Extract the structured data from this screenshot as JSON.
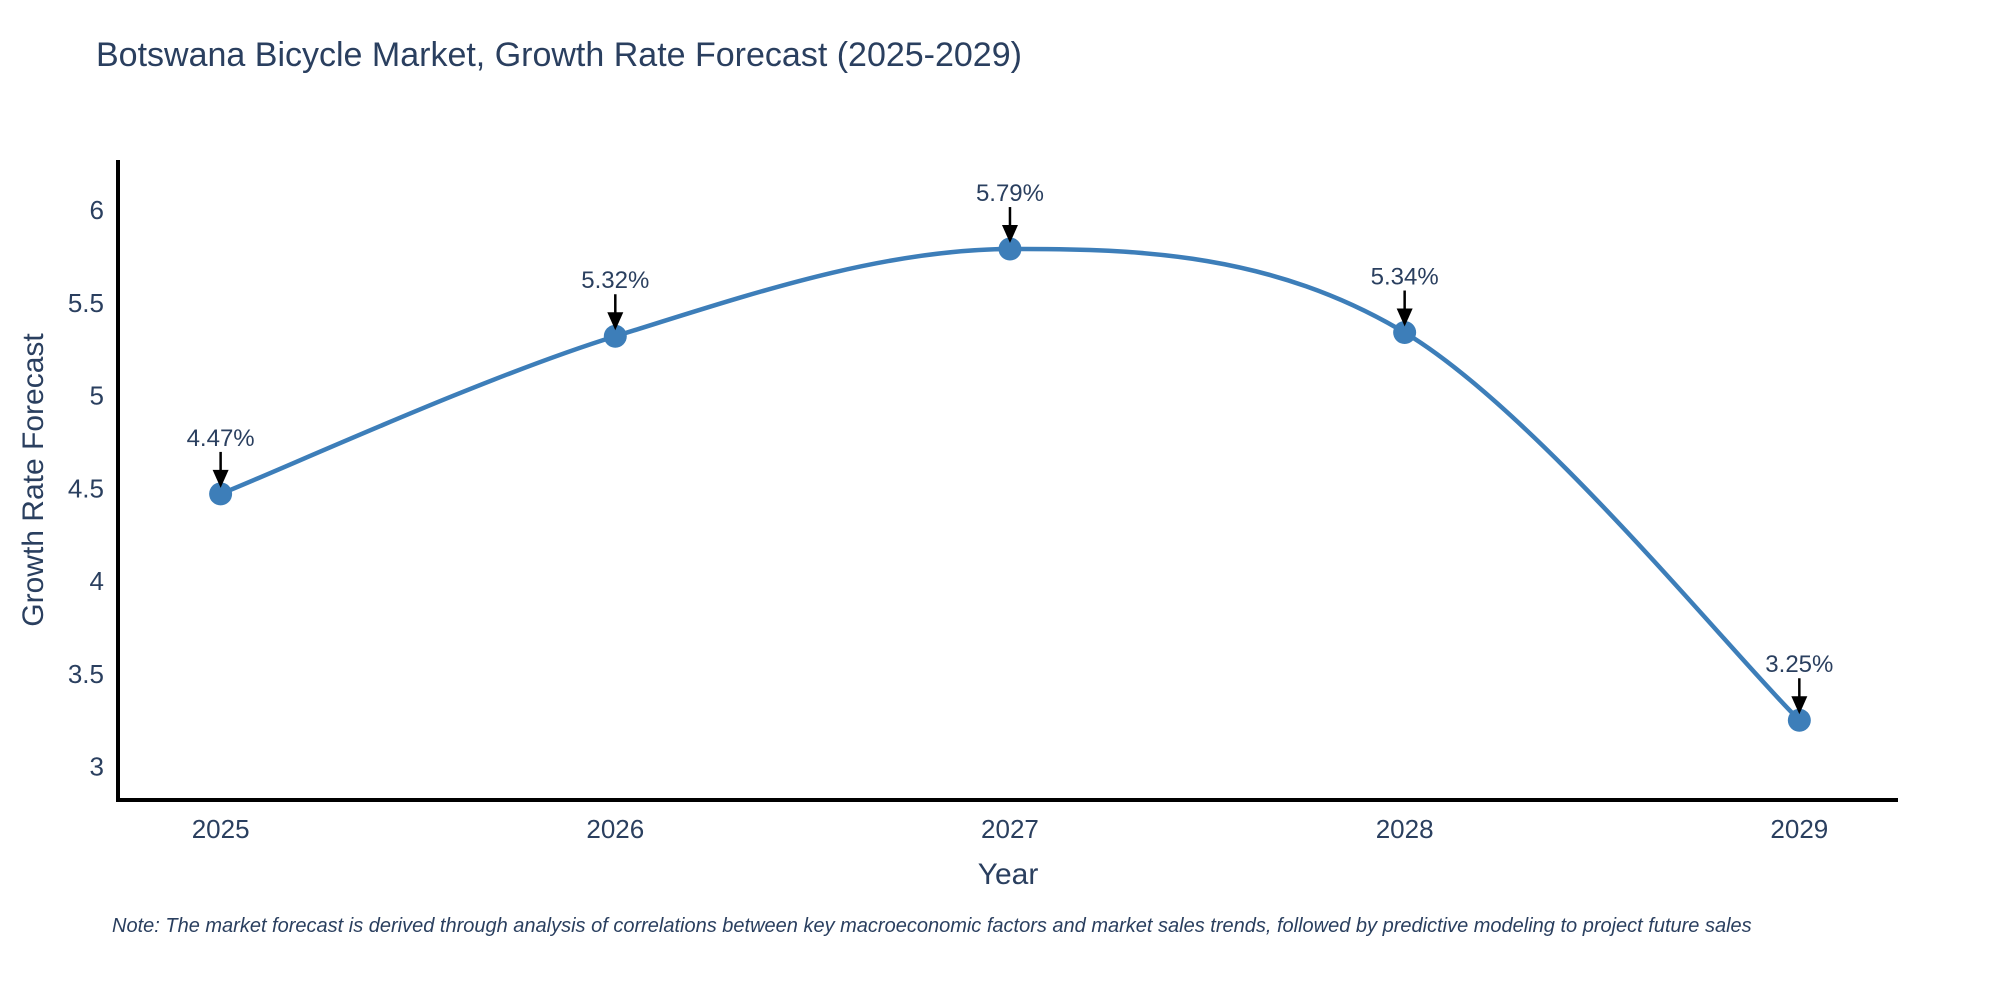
{
  "chart_data": {
    "type": "line",
    "title": "Botswana Bicycle Market, Growth Rate Forecast (2025-2029)",
    "xlabel": "Year",
    "ylabel": "Growth Rate Forecast",
    "x": [
      2025,
      2026,
      2027,
      2028,
      2029
    ],
    "y": [
      4.47,
      5.32,
      5.79,
      5.34,
      3.25
    ],
    "point_labels": [
      "4.47%",
      "5.32%",
      "5.79%",
      "5.34%",
      "3.25%"
    ],
    "x_tick_labels": [
      "2025",
      "2026",
      "2027",
      "2028",
      "2029"
    ],
    "y_ticks": [
      3,
      3.5,
      4,
      4.5,
      5,
      5.5,
      6
    ],
    "y_tick_labels": [
      "3",
      "3.5",
      "4",
      "4.5",
      "5",
      "5.5",
      "6"
    ],
    "xlim": [
      2024.74,
      2029.25
    ],
    "ylim": [
      2.82,
      6.27
    ],
    "line_shape": "spline",
    "grid": false,
    "legend": "none",
    "line_color": "#3d7eb9",
    "marker_color": "#3d7eb9",
    "annotation_arrow_color": "#000000",
    "text_color": "#2a3f5f",
    "axis_line_color": "#000000",
    "note": "Note: The market forecast is derived through analysis of correlations between key macroeconomic factors and market sales trends, followed by predictive modeling to project future sales"
  }
}
